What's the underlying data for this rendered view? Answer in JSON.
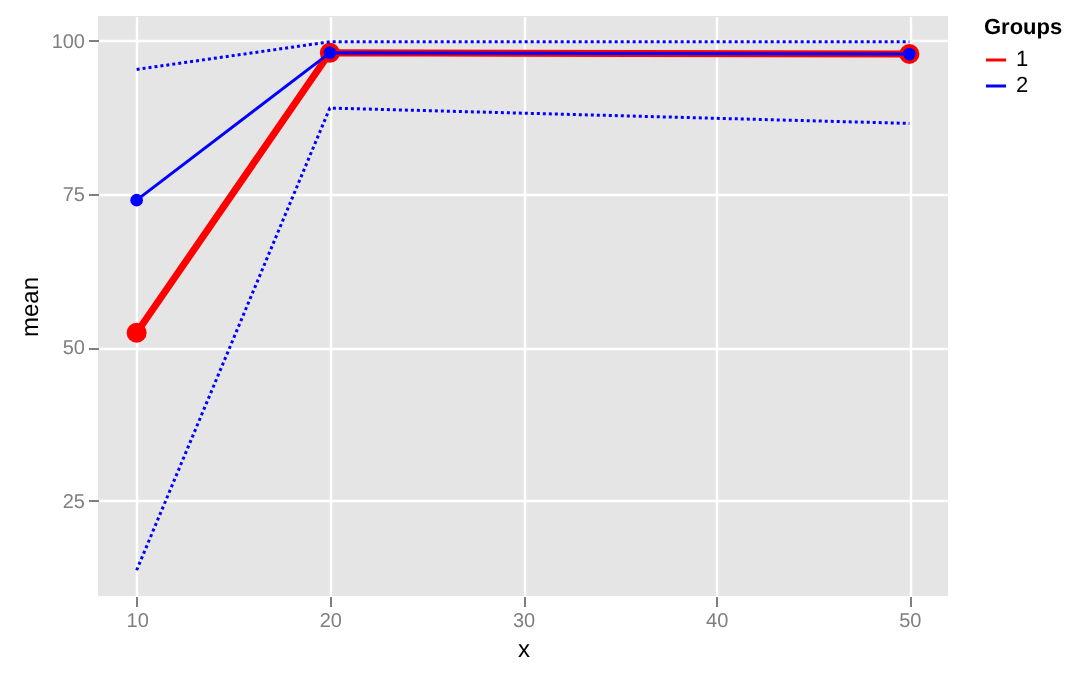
{
  "chart_data": {
    "type": "line",
    "xlabel": "x",
    "ylabel": "mean",
    "legend_title": "Groups",
    "x": [
      10,
      20,
      50
    ],
    "series": [
      {
        "name": "1",
        "color": "#ff0000",
        "values": [
          52.4,
          98,
          97.8
        ]
      },
      {
        "name": "2",
        "color": "#0000ff",
        "values": [
          74,
          98,
          97.8
        ]
      },
      {
        "color": "#0000ff",
        "values": [
          95.3,
          99.8,
          99.8
        ],
        "line_style": "dotted",
        "marker": "none"
      },
      {
        "color": "#0000ff",
        "values": [
          13.7,
          89,
          86.5
        ],
        "line_style": "dotted",
        "marker": "none"
      }
    ],
    "xlim": [
      8,
      52
    ],
    "xticks": [
      10,
      20,
      30,
      40,
      50
    ],
    "ylim": [
      9.5,
      104
    ],
    "yticks": [
      25,
      50,
      75,
      100
    ],
    "grid": true,
    "legend": "right",
    "marker": "circle",
    "line_style": "solid"
  }
}
